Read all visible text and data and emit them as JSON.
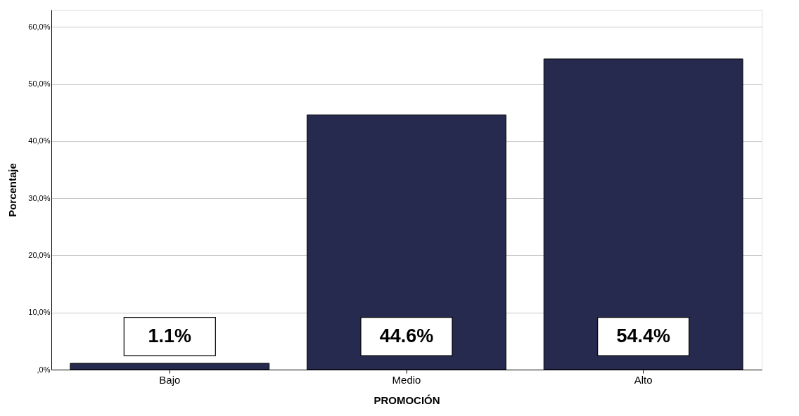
{
  "chart_data": {
    "type": "bar",
    "xlabel": "PROMOCIÓN",
    "ylabel": "Porcentaje",
    "categories": [
      "Bajo",
      "Medio",
      "Alto"
    ],
    "values": [
      1.1,
      44.6,
      54.4
    ],
    "color": "#262a4e",
    "value_labels": [
      "1.1%",
      "44.6%",
      "54.4%"
    ],
    "ylim": [
      0,
      63
    ],
    "yticks": [
      {
        "value": 0,
        "label": ",0%"
      },
      {
        "value": 10,
        "label": "10,0%"
      },
      {
        "value": 20,
        "label": "20,0%"
      },
      {
        "value": 30,
        "label": "30,0%"
      },
      {
        "value": 40,
        "label": "40,0%"
      },
      {
        "value": 50,
        "label": "50,0%"
      },
      {
        "value": 60,
        "label": "60,0%"
      }
    ],
    "grid": "y"
  }
}
